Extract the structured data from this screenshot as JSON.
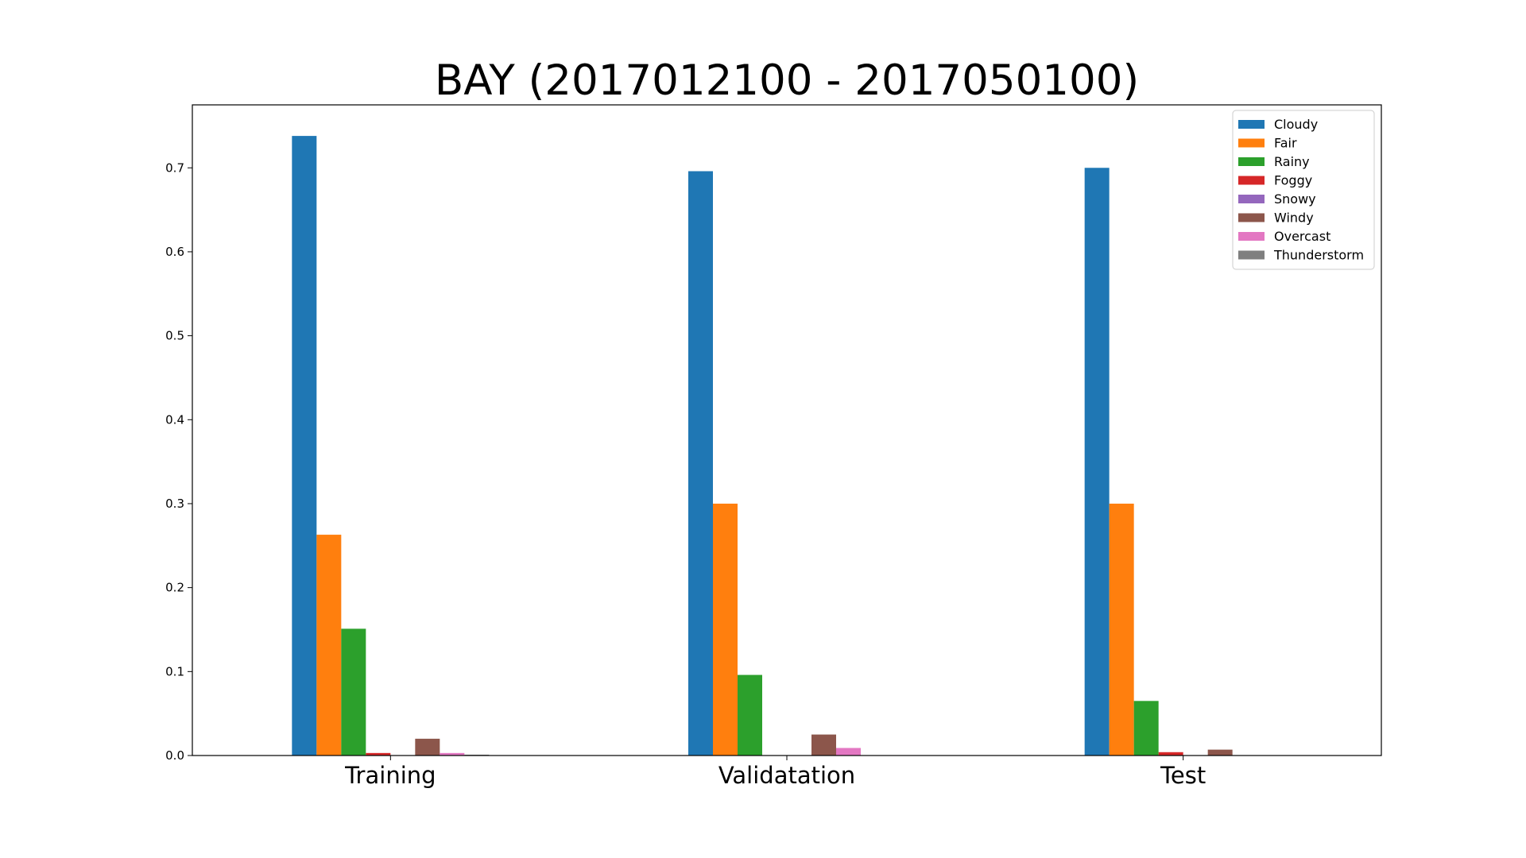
{
  "chart_data": {
    "type": "bar",
    "title": "BAY (2017012100 - 2017050100)",
    "xlabel": "",
    "ylabel": "",
    "categories": [
      "Training",
      "Validatation",
      "Test"
    ],
    "ylim": [
      0,
      0.775
    ],
    "yticks": [
      "0.0",
      "0.1",
      "0.2",
      "0.3",
      "0.4",
      "0.5",
      "0.6",
      "0.7"
    ],
    "grid": false,
    "legend_position": "top-right",
    "series": [
      {
        "name": "Cloudy",
        "color": "#1f77b4",
        "values": [
          0.738,
          0.696,
          0.7
        ]
      },
      {
        "name": "Fair",
        "color": "#ff7f0e",
        "values": [
          0.263,
          0.3,
          0.3
        ]
      },
      {
        "name": "Rainy",
        "color": "#2ca02c",
        "values": [
          0.151,
          0.096,
          0.065
        ]
      },
      {
        "name": "Foggy",
        "color": "#d62728",
        "values": [
          0.003,
          0.0,
          0.004
        ]
      },
      {
        "name": "Snowy",
        "color": "#9467bd",
        "values": [
          0.0,
          0.0,
          0.0
        ]
      },
      {
        "name": "Windy",
        "color": "#8c564b",
        "values": [
          0.02,
          0.025,
          0.007
        ]
      },
      {
        "name": "Overcast",
        "color": "#e377c2",
        "values": [
          0.003,
          0.009,
          0.0
        ]
      },
      {
        "name": "Thunderstorm",
        "color": "#7f7f7f",
        "values": [
          0.001,
          0.0,
          0.0
        ]
      }
    ]
  }
}
